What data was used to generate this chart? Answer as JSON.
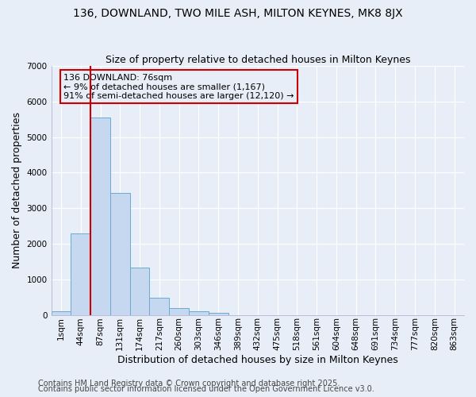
{
  "title1": "136, DOWNLAND, TWO MILE ASH, MILTON KEYNES, MK8 8JX",
  "title2": "Size of property relative to detached houses in Milton Keynes",
  "xlabel": "Distribution of detached houses by size in Milton Keynes",
  "ylabel": "Number of detached properties",
  "categories": [
    "1sqm",
    "44sqm",
    "87sqm",
    "131sqm",
    "174sqm",
    "217sqm",
    "260sqm",
    "303sqm",
    "346sqm",
    "389sqm",
    "432sqm",
    "475sqm",
    "518sqm",
    "561sqm",
    "604sqm",
    "648sqm",
    "691sqm",
    "734sqm",
    "777sqm",
    "820sqm",
    "863sqm"
  ],
  "values": [
    100,
    2300,
    5550,
    3420,
    1320,
    480,
    190,
    100,
    60,
    0,
    0,
    0,
    0,
    0,
    0,
    0,
    0,
    0,
    0,
    0,
    0
  ],
  "bar_color": "#c5d8ef",
  "bar_edge_color": "#6aabd2",
  "vline_color": "#cc0000",
  "vline_x_index": 2,
  "annotation_line1": "136 DOWNLAND: 76sqm",
  "annotation_line2": "← 9% of detached houses are smaller (1,167)",
  "annotation_line3": "91% of semi-detached houses are larger (12,120) →",
  "annotation_box_color": "#cc0000",
  "ylim": [
    0,
    7000
  ],
  "yticks": [
    0,
    1000,
    2000,
    3000,
    4000,
    5000,
    6000,
    7000
  ],
  "background_color": "#e8eef7",
  "grid_color": "#ffffff",
  "footer1": "Contains HM Land Registry data © Crown copyright and database right 2025.",
  "footer2": "Contains public sector information licensed under the Open Government Licence v3.0.",
  "title_fontsize": 10,
  "subtitle_fontsize": 9,
  "axis_label_fontsize": 9,
  "tick_fontsize": 7.5,
  "annotation_fontsize": 8,
  "footer_fontsize": 7
}
